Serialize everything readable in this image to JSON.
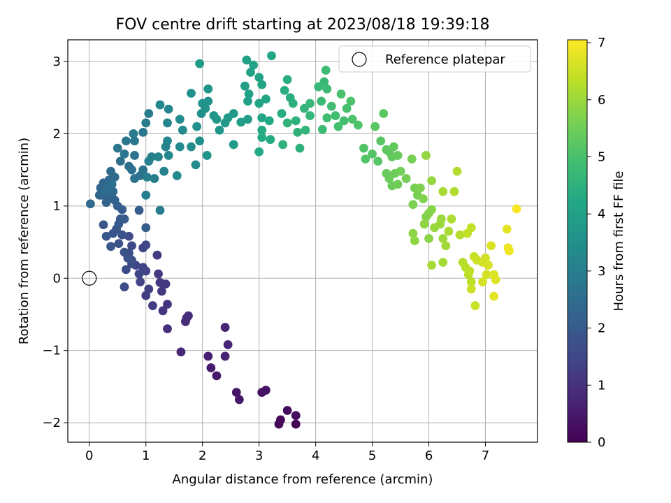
{
  "chart_data": {
    "type": "scatter",
    "title": "FOV centre drift starting at 2023/08/18 19:39:18",
    "xlabel": "Angular distance from reference (arcmin)",
    "ylabel": "Rotation from reference (arcmin)",
    "xlim": [
      -0.38,
      7.92
    ],
    "ylim": [
      -2.27,
      3.3
    ],
    "xticks": [
      0,
      1,
      2,
      3,
      4,
      5,
      6,
      7
    ],
    "yticks": [
      -2,
      -1,
      0,
      1,
      2,
      3
    ],
    "xtick_labels": [
      "0",
      "1",
      "2",
      "3",
      "4",
      "5",
      "6",
      "7"
    ],
    "ytick_labels": [
      "−2",
      "−1",
      "0",
      "1",
      "2",
      "3"
    ],
    "grid": true,
    "legend": {
      "label": "Reference platepar",
      "position": "top-right",
      "marker": "open-circle"
    },
    "reference_point": {
      "x": 0,
      "y": 0
    },
    "colorbar": {
      "label": "Hours from first FF file",
      "colormap": "viridis",
      "range": [
        0,
        7.05
      ],
      "ticks": [
        0,
        1,
        2,
        3,
        4,
        5,
        6,
        7
      ],
      "tick_labels": [
        "0",
        "1",
        "2",
        "3",
        "4",
        "5",
        "6",
        "7"
      ]
    },
    "points": [
      [
        3.65,
        -2.02,
        0.05
      ],
      [
        3.35,
        -2.02,
        0.1
      ],
      [
        3.38,
        -1.96,
        0.15
      ],
      [
        3.5,
        -1.83,
        0.2
      ],
      [
        3.65,
        -1.9,
        0.25
      ],
      [
        3.05,
        -1.58,
        0.3
      ],
      [
        3.12,
        -1.55,
        0.35
      ],
      [
        2.6,
        -1.58,
        0.4
      ],
      [
        2.65,
        -1.68,
        0.45
      ],
      [
        2.25,
        -1.35,
        0.5
      ],
      [
        2.15,
        -1.24,
        0.55
      ],
      [
        2.1,
        -1.08,
        0.6
      ],
      [
        2.4,
        -1.08,
        0.65
      ],
      [
        2.45,
        -0.92,
        0.7
      ],
      [
        2.4,
        -0.68,
        0.75
      ],
      [
        1.62,
        -1.02,
        0.8
      ],
      [
        1.72,
        -0.55,
        0.85
      ],
      [
        1.7,
        -0.6,
        0.88
      ],
      [
        1.75,
        -0.52,
        0.9
      ],
      [
        1.38,
        -0.7,
        0.95
      ],
      [
        1.38,
        -0.36,
        1.0
      ],
      [
        1.3,
        -0.45,
        1.05
      ],
      [
        1.28,
        -0.18,
        1.1
      ],
      [
        1.35,
        -0.08,
        1.12
      ],
      [
        1.25,
        -0.06,
        1.15
      ],
      [
        1.22,
        0.06,
        1.2
      ],
      [
        1.2,
        0.32,
        1.22
      ],
      [
        1.12,
        -0.38,
        1.25
      ],
      [
        1.05,
        -0.15,
        1.28
      ],
      [
        1.0,
        -0.24,
        1.3
      ],
      [
        1.0,
        0.1,
        1.35
      ],
      [
        0.95,
        0.15,
        1.38
      ],
      [
        0.9,
        -0.05,
        1.4
      ],
      [
        0.95,
        0.42,
        1.42
      ],
      [
        1.0,
        0.46,
        1.45
      ],
      [
        0.88,
        0.06,
        1.48
      ],
      [
        0.82,
        0.18,
        1.5
      ],
      [
        0.75,
        0.45,
        1.55
      ],
      [
        0.7,
        0.58,
        1.58
      ],
      [
        0.75,
        0.2,
        1.6
      ],
      [
        0.65,
        0.12,
        1.62
      ],
      [
        0.62,
        -0.12,
        1.65
      ],
      [
        0.7,
        0.35,
        1.68
      ],
      [
        0.75,
        0.25,
        1.7
      ],
      [
        0.68,
        0.28,
        1.72
      ],
      [
        0.62,
        0.36,
        1.75
      ],
      [
        0.58,
        0.6,
        1.78
      ],
      [
        0.52,
        0.48,
        1.8
      ],
      [
        0.48,
        0.68,
        1.82
      ],
      [
        0.42,
        0.62,
        1.85
      ],
      [
        0.38,
        0.44,
        1.88
      ],
      [
        0.3,
        0.58,
        1.9
      ],
      [
        0.25,
        0.74,
        1.92
      ],
      [
        0.52,
        0.75,
        1.95
      ],
      [
        0.55,
        0.82,
        1.98
      ],
      [
        0.62,
        0.82,
        2.0
      ],
      [
        0.58,
        0.95,
        2.05
      ],
      [
        0.88,
        0.94,
        2.08
      ],
      [
        1.0,
        0.7,
        2.1
      ],
      [
        0.5,
        1.0,
        2.12
      ],
      [
        0.45,
        1.08,
        2.15
      ],
      [
        0.4,
        1.12,
        2.18
      ],
      [
        0.35,
        1.1,
        2.2
      ],
      [
        0.3,
        1.05,
        2.22
      ],
      [
        0.22,
        1.15,
        2.25
      ],
      [
        0.18,
        1.15,
        2.28
      ],
      [
        0.2,
        1.25,
        2.3
      ],
      [
        0.25,
        1.32,
        2.32
      ],
      [
        0.3,
        1.28,
        2.35
      ],
      [
        0.35,
        1.36,
        2.38
      ],
      [
        0.42,
        1.2,
        2.4
      ],
      [
        0.02,
        1.03,
        2.42
      ],
      [
        0.38,
        1.48,
        2.45
      ],
      [
        0.45,
        1.4,
        2.48
      ],
      [
        0.28,
        1.2,
        2.5
      ],
      [
        0.32,
        1.22,
        2.52
      ],
      [
        0.4,
        1.3,
        2.55
      ],
      [
        0.55,
        1.62,
        2.58
      ],
      [
        0.7,
        1.55,
        2.6
      ],
      [
        0.75,
        1.5,
        2.62
      ],
      [
        0.8,
        1.38,
        2.65
      ],
      [
        0.9,
        1.42,
        2.68
      ],
      [
        0.95,
        1.5,
        2.7
      ],
      [
        0.8,
        1.7,
        2.72
      ],
      [
        0.62,
        1.72,
        2.75
      ],
      [
        0.5,
        1.8,
        2.78
      ],
      [
        0.65,
        1.9,
        2.8
      ],
      [
        0.8,
        1.9,
        2.82
      ],
      [
        0.78,
        2.0,
        2.85
      ],
      [
        0.95,
        2.02,
        2.88
      ],
      [
        1.0,
        2.15,
        2.9
      ],
      [
        1.05,
        2.28,
        2.92
      ],
      [
        1.0,
        1.15,
        2.95
      ],
      [
        1.25,
        0.94,
        2.98
      ],
      [
        1.15,
        1.38,
        3.0
      ],
      [
        1.02,
        1.4,
        3.02
      ],
      [
        1.05,
        1.62,
        3.05
      ],
      [
        1.1,
        1.68,
        3.08
      ],
      [
        1.22,
        1.68,
        3.1
      ],
      [
        1.32,
        1.48,
        3.12
      ],
      [
        1.35,
        1.82,
        3.15
      ],
      [
        1.38,
        1.9,
        3.18
      ],
      [
        1.38,
        2.15,
        3.2
      ],
      [
        1.25,
        2.4,
        3.22
      ],
      [
        1.4,
        2.34,
        3.25
      ],
      [
        1.55,
        1.42,
        3.28
      ],
      [
        1.4,
        1.7,
        3.3
      ],
      [
        1.6,
        1.82,
        3.32
      ],
      [
        1.65,
        2.05,
        3.35
      ],
      [
        1.6,
        2.2,
        3.38
      ],
      [
        1.8,
        1.82,
        3.4
      ],
      [
        1.88,
        1.57,
        3.42
      ],
      [
        1.95,
        1.9,
        3.45
      ],
      [
        1.98,
        2.28,
        3.48
      ],
      [
        1.9,
        2.1,
        3.5
      ],
      [
        1.8,
        2.56,
        3.52
      ],
      [
        2.0,
        2.42,
        3.55
      ],
      [
        2.05,
        2.35,
        3.58
      ],
      [
        2.1,
        2.45,
        3.6
      ],
      [
        2.1,
        2.62,
        3.62
      ],
      [
        2.08,
        1.7,
        3.65
      ],
      [
        2.2,
        2.25,
        3.68
      ],
      [
        2.25,
        2.2,
        3.7
      ],
      [
        2.3,
        2.05,
        3.72
      ],
      [
        2.4,
        2.15,
        3.75
      ],
      [
        2.45,
        2.22,
        3.78
      ],
      [
        1.95,
        2.97,
        3.8
      ],
      [
        2.55,
        2.28,
        3.82
      ],
      [
        2.55,
        1.85,
        3.85
      ],
      [
        2.68,
        2.16,
        3.88
      ],
      [
        2.8,
        2.2,
        3.9
      ],
      [
        2.8,
        2.45,
        3.92
      ],
      [
        2.75,
        2.66,
        3.95
      ],
      [
        2.85,
        2.85,
        3.98
      ],
      [
        2.82,
        2.55,
        4.0
      ],
      [
        2.78,
        3.02,
        4.02
      ],
      [
        2.9,
        2.95,
        4.05
      ],
      [
        3.0,
        2.78,
        4.08
      ],
      [
        3.05,
        2.68,
        4.1
      ],
      [
        3.0,
        2.42,
        4.12
      ],
      [
        3.05,
        2.22,
        4.15
      ],
      [
        3.12,
        2.48,
        4.18
      ],
      [
        3.22,
        3.08,
        4.2
      ],
      [
        3.18,
        2.18,
        4.22
      ],
      [
        3.05,
        2.05,
        4.25
      ],
      [
        3.0,
        1.75,
        4.28
      ],
      [
        3.05,
        1.95,
        4.3
      ],
      [
        3.2,
        1.92,
        4.32
      ],
      [
        3.4,
        2.28,
        4.35
      ],
      [
        3.45,
        2.6,
        4.38
      ],
      [
        3.5,
        2.75,
        4.4
      ],
      [
        3.55,
        2.5,
        4.42
      ],
      [
        3.6,
        2.42,
        4.45
      ],
      [
        3.65,
        2.18,
        4.48
      ],
      [
        3.72,
        1.8,
        4.5
      ],
      [
        3.68,
        2.02,
        4.52
      ],
      [
        3.42,
        1.85,
        4.55
      ],
      [
        3.5,
        2.15,
        4.58
      ],
      [
        3.8,
        2.35,
        4.6
      ],
      [
        3.82,
        2.05,
        4.62
      ],
      [
        3.9,
        2.25,
        4.65
      ],
      [
        3.9,
        2.42,
        4.68
      ],
      [
        4.05,
        2.65,
        4.7
      ],
      [
        4.15,
        2.72,
        4.72
      ],
      [
        4.1,
        2.45,
        4.75
      ],
      [
        4.2,
        2.62,
        4.78
      ],
      [
        4.18,
        2.88,
        4.8
      ],
      [
        4.12,
        2.06,
        4.82
      ],
      [
        4.2,
        2.22,
        4.85
      ],
      [
        4.28,
        2.38,
        4.88
      ],
      [
        4.35,
        2.25,
        4.9
      ],
      [
        4.4,
        2.1,
        4.92
      ],
      [
        4.5,
        2.18,
        4.95
      ],
      [
        4.55,
        2.35,
        4.98
      ],
      [
        4.45,
        2.55,
        5.0
      ],
      [
        4.62,
        2.45,
        5.02
      ],
      [
        4.65,
        2.2,
        5.05
      ],
      [
        4.75,
        2.12,
        5.08
      ],
      [
        4.85,
        1.8,
        5.1
      ],
      [
        4.88,
        1.65,
        5.12
      ],
      [
        5.0,
        1.72,
        5.15
      ],
      [
        5.1,
        1.62,
        5.18
      ],
      [
        5.05,
        2.1,
        5.2
      ],
      [
        5.15,
        1.9,
        5.22
      ],
      [
        5.2,
        2.28,
        5.25
      ],
      [
        5.25,
        1.78,
        5.28
      ],
      [
        5.3,
        1.75,
        5.3
      ],
      [
        5.35,
        1.68,
        5.32
      ],
      [
        5.38,
        1.82,
        5.35
      ],
      [
        5.45,
        1.7,
        5.38
      ],
      [
        5.25,
        1.45,
        5.4
      ],
      [
        5.3,
        1.38,
        5.42
      ],
      [
        5.35,
        1.28,
        5.45
      ],
      [
        5.4,
        1.45,
        5.48
      ],
      [
        5.45,
        1.3,
        5.5
      ],
      [
        5.5,
        1.48,
        5.52
      ],
      [
        5.6,
        1.38,
        5.55
      ],
      [
        5.7,
        1.65,
        5.58
      ],
      [
        5.75,
        1.25,
        5.6
      ],
      [
        5.8,
        1.15,
        5.62
      ],
      [
        5.72,
        1.02,
        5.65
      ],
      [
        5.85,
        1.25,
        5.68
      ],
      [
        5.9,
        1.1,
        5.7
      ],
      [
        5.95,
        0.85,
        5.72
      ],
      [
        6.0,
        0.9,
        5.75
      ],
      [
        6.05,
        0.95,
        5.78
      ],
      [
        6.0,
        0.55,
        5.8
      ],
      [
        5.72,
        0.62,
        5.82
      ],
      [
        5.75,
        0.52,
        5.85
      ],
      [
        5.92,
        0.75,
        5.88
      ],
      [
        5.95,
        1.7,
        5.9
      ],
      [
        6.05,
        1.35,
        5.92
      ],
      [
        6.1,
        0.7,
        5.95
      ],
      [
        6.2,
        0.75,
        5.98
      ],
      [
        6.22,
        0.82,
        6.0
      ],
      [
        6.25,
        0.55,
        6.02
      ],
      [
        6.3,
        0.45,
        6.05
      ],
      [
        6.25,
        0.22,
        6.08
      ],
      [
        6.05,
        0.18,
        6.1
      ],
      [
        6.25,
        1.2,
        6.12
      ],
      [
        6.35,
        0.65,
        6.15
      ],
      [
        6.4,
        0.82,
        6.18
      ],
      [
        6.45,
        1.2,
        6.2
      ],
      [
        6.5,
        1.48,
        6.22
      ],
      [
        6.55,
        0.6,
        6.25
      ],
      [
        6.6,
        0.22,
        6.28
      ],
      [
        6.65,
        0.15,
        6.3
      ],
      [
        6.7,
        0.05,
        6.32
      ],
      [
        6.75,
        -0.05,
        6.35
      ],
      [
        6.72,
        0.1,
        6.38
      ],
      [
        6.68,
        0.62,
        6.4
      ],
      [
        6.75,
        0.7,
        6.42
      ],
      [
        6.8,
        0.3,
        6.45
      ],
      [
        6.82,
        -0.38,
        6.48
      ],
      [
        6.75,
        -0.15,
        6.5
      ],
      [
        6.85,
        0.25,
        6.52
      ],
      [
        6.95,
        0.22,
        6.55
      ],
      [
        7.0,
        0.28,
        6.58
      ],
      [
        7.02,
        0.05,
        6.6
      ],
      [
        6.95,
        -0.05,
        6.62
      ],
      [
        7.05,
        0.18,
        6.65
      ],
      [
        7.1,
        0.45,
        6.68
      ],
      [
        7.15,
        0.05,
        6.7
      ],
      [
        7.18,
        -0.02,
        6.72
      ],
      [
        7.15,
        -0.25,
        6.75
      ],
      [
        7.38,
        0.68,
        6.8
      ],
      [
        7.4,
        0.42,
        6.85
      ],
      [
        7.42,
        0.38,
        6.9
      ],
      [
        7.55,
        0.96,
        7.0
      ]
    ]
  }
}
